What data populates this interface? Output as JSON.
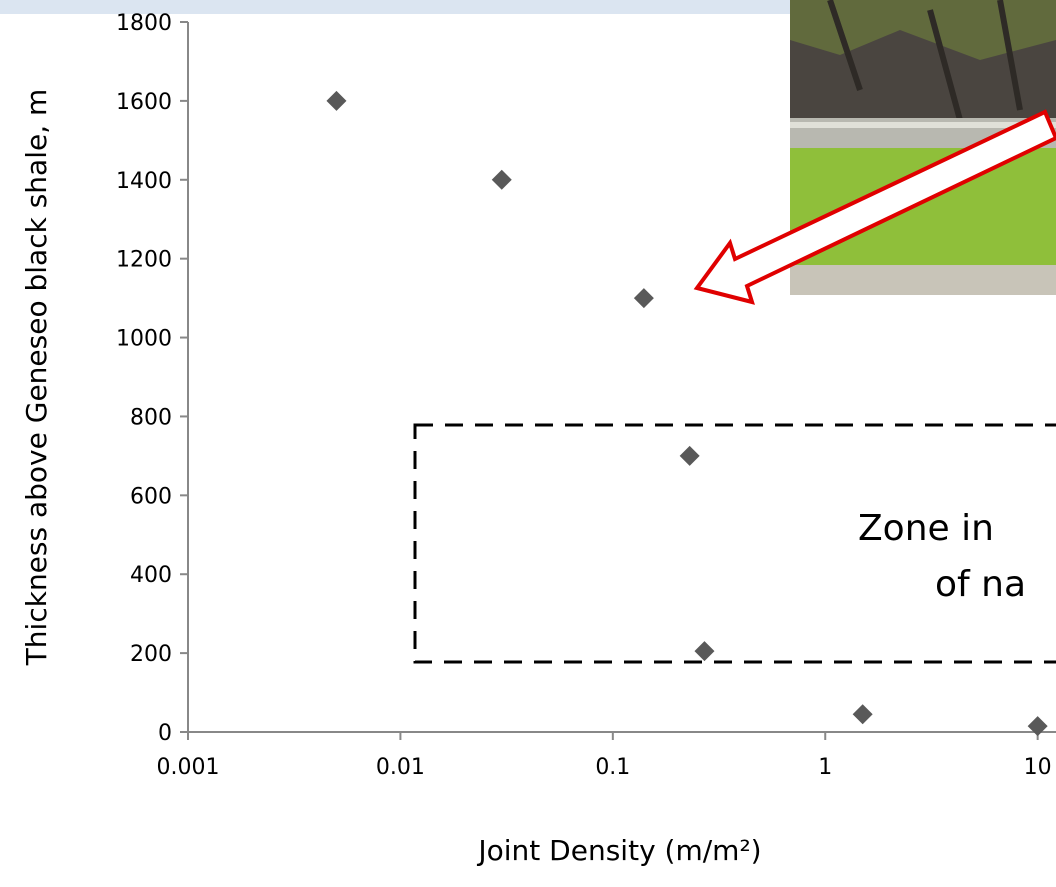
{
  "chart_data": {
    "type": "scatter",
    "x_label": "Joint Density (m/m²)",
    "y_label": "Thickness above Geneseo black shale, m",
    "x": [
      0.005,
      0.03,
      0.14,
      0.23,
      0.27,
      1.5,
      10
    ],
    "values": [
      1600,
      1400,
      1100,
      700,
      205,
      45,
      15
    ],
    "color": "#595959",
    "xlog": true,
    "xlim": [
      0.001,
      12.2
    ],
    "xticks": [
      0.001,
      0.01,
      0.1,
      1,
      10
    ],
    "ylim": [
      0,
      1800
    ],
    "yticks": [
      0,
      200,
      400,
      600,
      800,
      1000,
      1200,
      1400,
      1600,
      1800
    ],
    "annotation_lines": [
      "Zone in",
      "of na"
    ]
  }
}
